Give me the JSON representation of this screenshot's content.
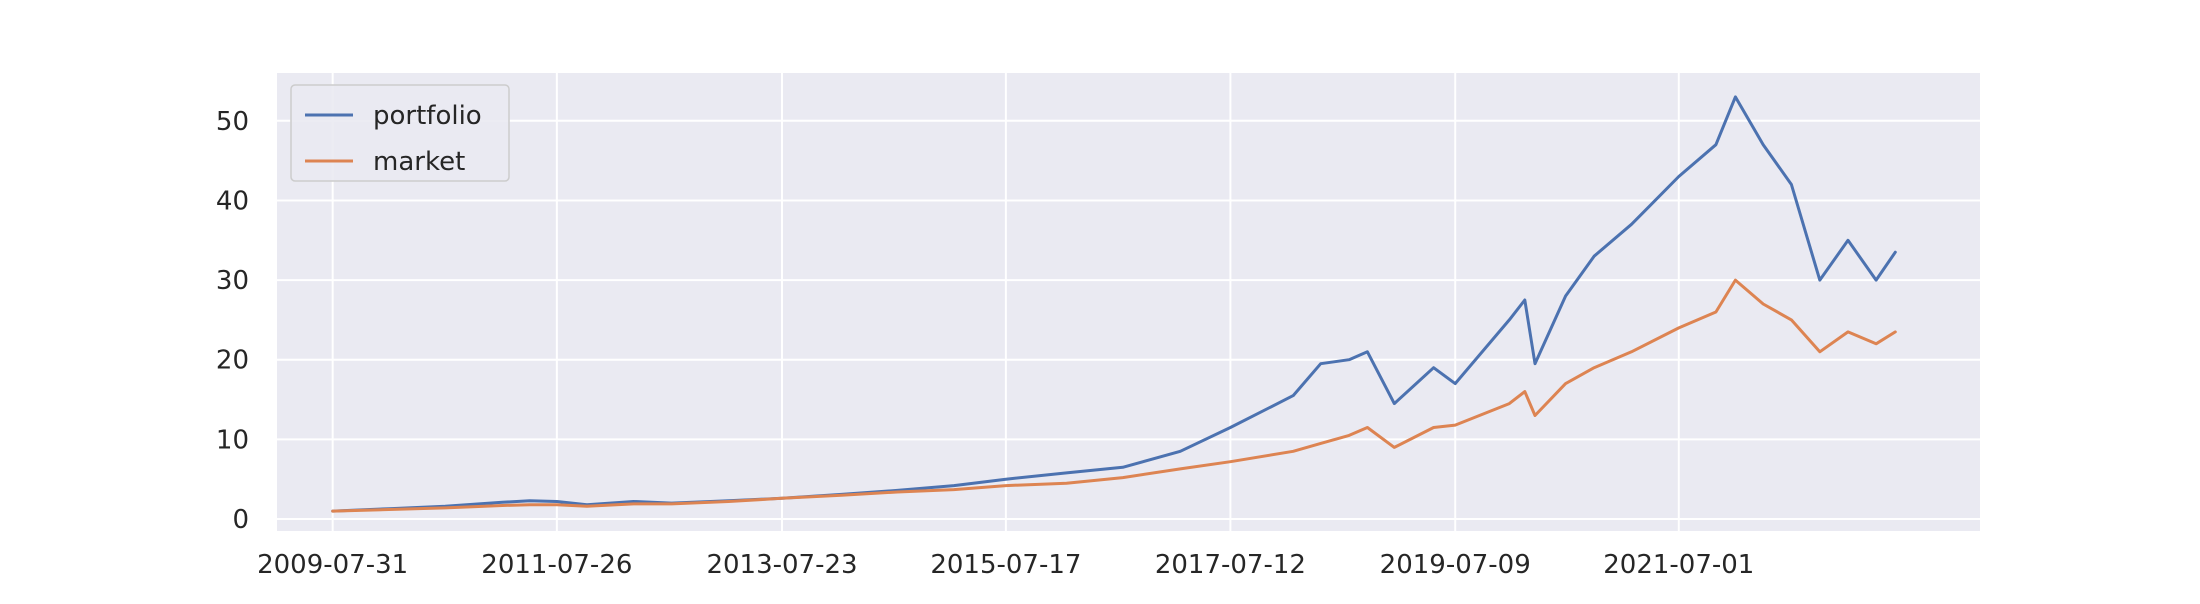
{
  "chart_data": {
    "type": "line",
    "title": "",
    "xlabel": "",
    "ylabel": "",
    "x_tick_labels": [
      "2009-07-31",
      "2011-07-26",
      "2013-07-23",
      "2015-07-17",
      "2017-07-12",
      "2019-07-09",
      "2021-07-01"
    ],
    "y_ticks": [
      0,
      10,
      20,
      30,
      40,
      50
    ],
    "xlim": [
      "2009-02-01",
      "2024-03-01"
    ],
    "ylim": [
      -1.5,
      56.0
    ],
    "grid": true,
    "legend_position": "upper-left",
    "series": [
      {
        "name": "portfolio",
        "color": "#4c72b0",
        "x": [
          "2009-07-31",
          "2010-01-29",
          "2010-07-30",
          "2011-01-31",
          "2011-04-29",
          "2011-07-26",
          "2011-10-31",
          "2012-03-30",
          "2012-07-31",
          "2013-01-31",
          "2013-07-23",
          "2014-01-31",
          "2014-07-31",
          "2015-01-30",
          "2015-07-17",
          "2016-01-29",
          "2016-07-29",
          "2017-01-31",
          "2017-07-12",
          "2018-01-31",
          "2018-04-30",
          "2018-07-31",
          "2018-09-28",
          "2018-12-24",
          "2019-04-30",
          "2019-07-09",
          "2019-12-31",
          "2020-02-19",
          "2020-03-23",
          "2020-06-30",
          "2020-09-30",
          "2021-01-29",
          "2021-07-01",
          "2021-10-29",
          "2021-12-31",
          "2022-03-31",
          "2022-06-30",
          "2022-09-30",
          "2022-12-30",
          "2023-03-31",
          "2023-06-01"
        ],
        "y": [
          1.0,
          1.3,
          1.6,
          2.1,
          2.3,
          2.2,
          1.8,
          2.2,
          2.0,
          2.3,
          2.6,
          3.1,
          3.6,
          4.2,
          5.0,
          5.8,
          6.5,
          8.5,
          11.5,
          15.5,
          19.5,
          20.0,
          21.0,
          14.5,
          19.0,
          17.0,
          25.0,
          27.5,
          19.5,
          28.0,
          33.0,
          37.0,
          43.0,
          47.0,
          53.0,
          47.0,
          42.0,
          30.0,
          35.0,
          30.0,
          33.5
        ]
      },
      {
        "name": "market",
        "color": "#dd8452",
        "x": [
          "2009-07-31",
          "2010-01-29",
          "2010-07-30",
          "2011-01-31",
          "2011-04-29",
          "2011-07-26",
          "2011-10-31",
          "2012-03-30",
          "2012-07-31",
          "2013-01-31",
          "2013-07-23",
          "2014-01-31",
          "2014-07-31",
          "2015-01-30",
          "2015-07-17",
          "2016-01-29",
          "2016-07-29",
          "2017-01-31",
          "2017-07-12",
          "2018-01-31",
          "2018-04-30",
          "2018-07-31",
          "2018-09-28",
          "2018-12-24",
          "2019-04-30",
          "2019-07-09",
          "2019-12-31",
          "2020-02-19",
          "2020-03-23",
          "2020-06-30",
          "2020-09-30",
          "2021-01-29",
          "2021-07-01",
          "2021-10-29",
          "2021-12-31",
          "2022-03-31",
          "2022-06-30",
          "2022-09-30",
          "2022-12-30",
          "2023-03-31",
          "2023-06-01"
        ],
        "y": [
          1.0,
          1.2,
          1.4,
          1.7,
          1.8,
          1.8,
          1.6,
          1.9,
          1.9,
          2.2,
          2.6,
          3.0,
          3.4,
          3.7,
          4.2,
          4.5,
          5.2,
          6.3,
          7.2,
          8.5,
          9.5,
          10.5,
          11.5,
          9.0,
          11.5,
          11.8,
          14.5,
          16.0,
          13.0,
          17.0,
          19.0,
          21.0,
          24.0,
          26.0,
          30.0,
          27.0,
          25.0,
          21.0,
          23.5,
          22.0,
          23.5
        ]
      }
    ]
  }
}
